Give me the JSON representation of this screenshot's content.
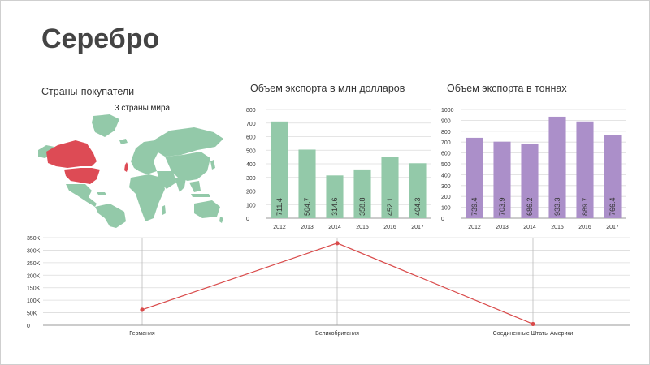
{
  "page": {
    "title": "Серебро"
  },
  "map": {
    "title": "Страны-покупатели",
    "subtitle": "3 страны мира",
    "base_color": "#93c9a9",
    "highlight_color": "#dd4b55",
    "highlighted_countries": [
      "Canada",
      "United States",
      "United Kingdom"
    ]
  },
  "colors": {
    "usd_bars": "#93c9a9",
    "ton_bars": "#ab8fc9",
    "line": "#d94a4a",
    "grid": "#dcdcdc",
    "axis": "#999999"
  },
  "chart_data": [
    {
      "id": "usd",
      "type": "bar",
      "title": "Объем экспорта в млн долларов",
      "categories": [
        "2012",
        "2013",
        "2014",
        "2015",
        "2016",
        "2017"
      ],
      "values": [
        711.4,
        504.7,
        314.6,
        358.8,
        452.1,
        404.3
      ],
      "value_labels": [
        "711.4",
        "504.7",
        "314.6",
        "358.8",
        "452.1",
        "404.3"
      ],
      "ylim": [
        0,
        800
      ],
      "yticks": [
        "0",
        "100",
        "200",
        "300",
        "400",
        "500",
        "600",
        "700",
        "800"
      ],
      "grid": true,
      "legend": "none"
    },
    {
      "id": "tons",
      "type": "bar",
      "title": "Объем экспорта в тоннах",
      "categories": [
        "2012",
        "2013",
        "2014",
        "2015",
        "2016",
        "2017"
      ],
      "values": [
        739.4,
        703.9,
        686.2,
        933.3,
        889.7,
        766.4
      ],
      "value_labels": [
        "739.4",
        "703.9",
        "686.2",
        "933.3",
        "889.7",
        "766.4"
      ],
      "ylim": [
        0,
        1000
      ],
      "yticks": [
        "0",
        "100",
        "200",
        "300",
        "400",
        "500",
        "600",
        "700",
        "800",
        "900",
        "1000"
      ],
      "grid": true,
      "legend": "none"
    },
    {
      "id": "countries",
      "type": "line",
      "title": "",
      "categories": [
        "Германия",
        "Великобритания",
        "Соединенные Штаты Америки"
      ],
      "values": [
        62000,
        328000,
        5000
      ],
      "ylim": [
        0,
        350000
      ],
      "yticks": [
        "0",
        "50K",
        "100K",
        "150K",
        "200K",
        "250K",
        "300K",
        "350K"
      ],
      "grid": true,
      "legend": "none"
    }
  ]
}
